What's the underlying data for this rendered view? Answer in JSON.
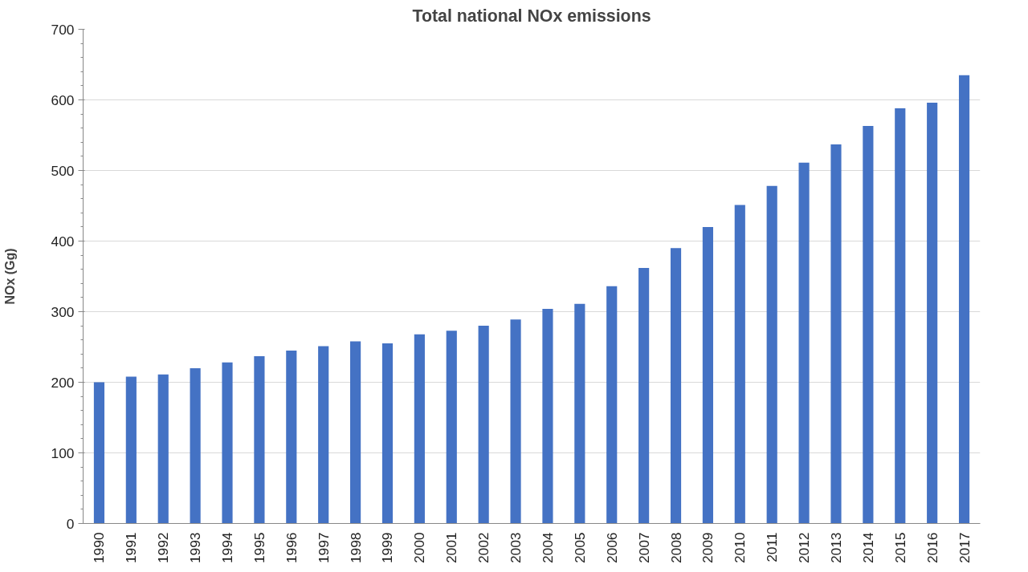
{
  "chart_data": {
    "type": "bar",
    "title": "Total national NOx emissions",
    "ylabel": "NOx (Gg)",
    "categories": [
      "1990",
      "1991",
      "1992",
      "1993",
      "1994",
      "1995",
      "1996",
      "1997",
      "1998",
      "1999",
      "2000",
      "2001",
      "2002",
      "2003",
      "2004",
      "2005",
      "2006",
      "2007",
      "2008",
      "2009",
      "2010",
      "2011",
      "2012",
      "2013",
      "2014",
      "2015",
      "2016",
      "2017"
    ],
    "values": [
      200,
      208,
      211,
      220,
      228,
      237,
      245,
      251,
      258,
      255,
      268,
      273,
      280,
      289,
      304,
      311,
      336,
      362,
      390,
      420,
      451,
      478,
      511,
      537,
      563,
      588,
      596,
      635
    ],
    "color": "#4472c4",
    "ylim": [
      0,
      700
    ],
    "yticks": [
      0,
      100,
      200,
      300,
      400,
      500,
      600,
      700
    ],
    "grid": "y"
  }
}
